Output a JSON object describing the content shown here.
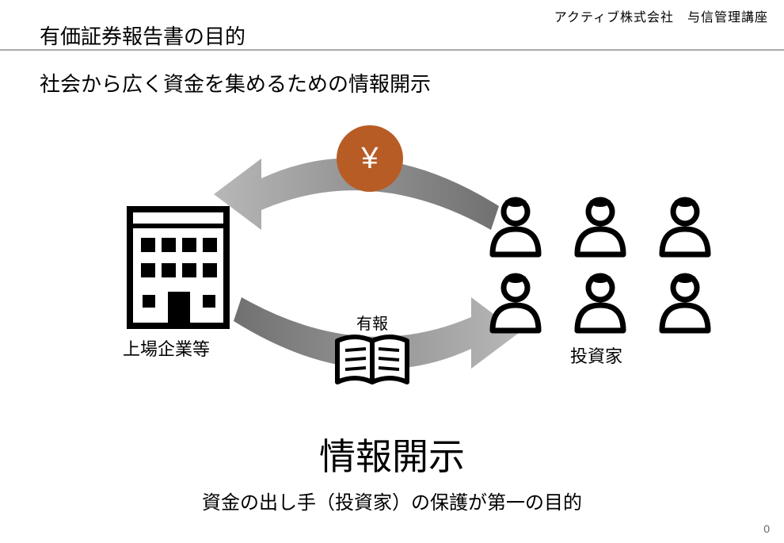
{
  "header": {
    "right": "アクティブ株式会社　与信管理講座"
  },
  "title": "有価証券報告書の目的",
  "subtitle": "社会から広く資金を集めるための情報開示",
  "diagram": {
    "building_label": "上場企業等",
    "investors_label": "投資家",
    "yen_symbol": "¥",
    "yen_circle_color": "#b85c26",
    "book_label": "有報",
    "arrow_color": "#808080",
    "icon_color": "#000000",
    "investor_grid": {
      "rows": 2,
      "cols": 3
    }
  },
  "big_label": "情報開示",
  "bottom_text": "資金の出し手（投資家）の保護が第一の目的",
  "page_number": "0",
  "colors": {
    "underline": "#aaaaaa",
    "text": "#000000",
    "background": "#ffffff"
  }
}
